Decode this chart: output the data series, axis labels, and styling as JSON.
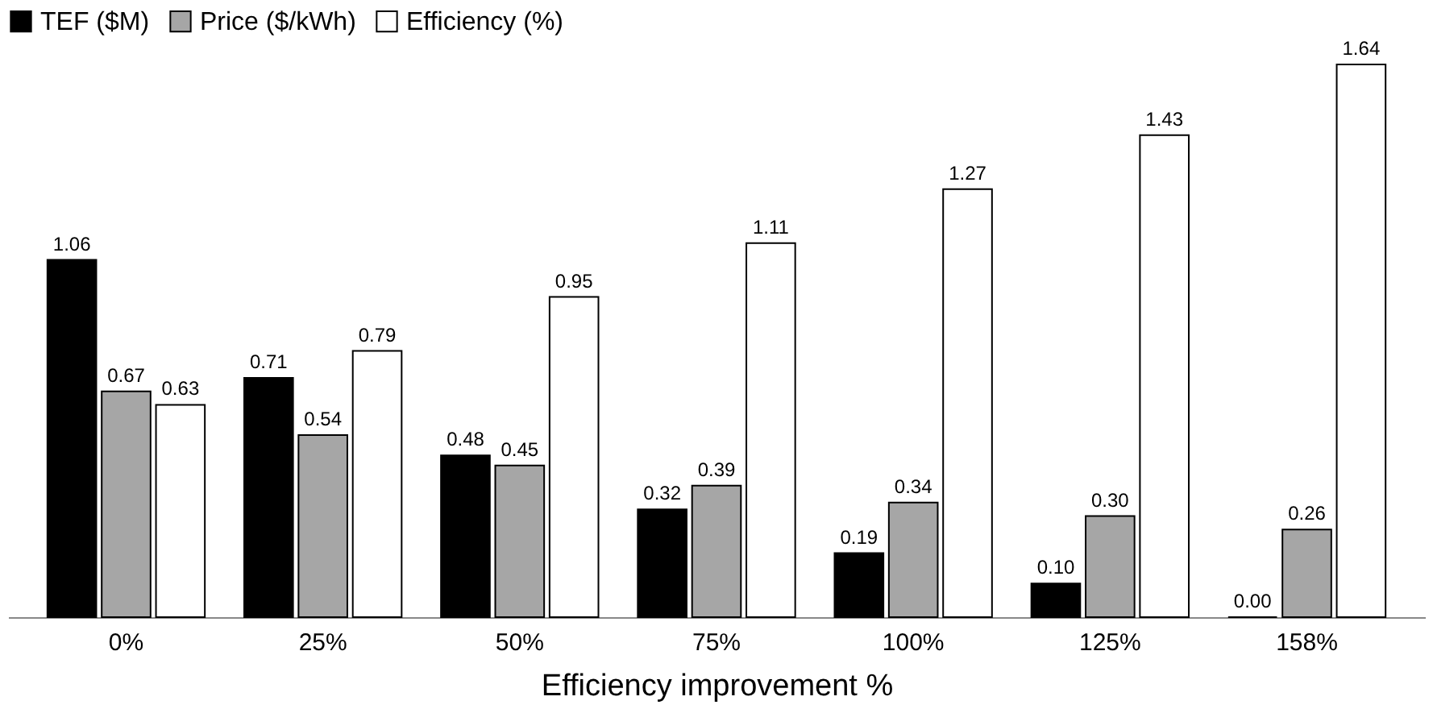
{
  "chart_data": {
    "type": "bar",
    "xlabel": "Efficiency improvement %",
    "categories": [
      "0%",
      "25%",
      "50%",
      "75%",
      "100%",
      "125%",
      "158%"
    ],
    "series": [
      {
        "name": "TEF ($M)",
        "color": "#000000",
        "values": [
          1.06,
          0.71,
          0.48,
          0.32,
          0.19,
          0.1,
          0.0
        ],
        "value_labels": [
          "1.06",
          "0.71",
          "0.48",
          "0.32",
          "0.19",
          "0.10",
          "0.00"
        ]
      },
      {
        "name": "Price ($/kWh)",
        "color": "#a6a6a6",
        "values": [
          0.67,
          0.54,
          0.45,
          0.39,
          0.34,
          0.3,
          0.26
        ],
        "value_labels": [
          "0.67",
          "0.54",
          "0.45",
          "0.39",
          "0.34",
          "0.30",
          "0.26"
        ]
      },
      {
        "name": "Efficiency (%)",
        "color": "#ffffff",
        "values": [
          0.63,
          0.79,
          0.95,
          1.11,
          1.27,
          1.43,
          1.64
        ],
        "value_labels": [
          "0.63",
          "0.79",
          "0.95",
          "1.11",
          "1.27",
          "1.43",
          "1.64"
        ]
      }
    ],
    "legend": "top",
    "grid": false,
    "tick_labels": "x"
  }
}
